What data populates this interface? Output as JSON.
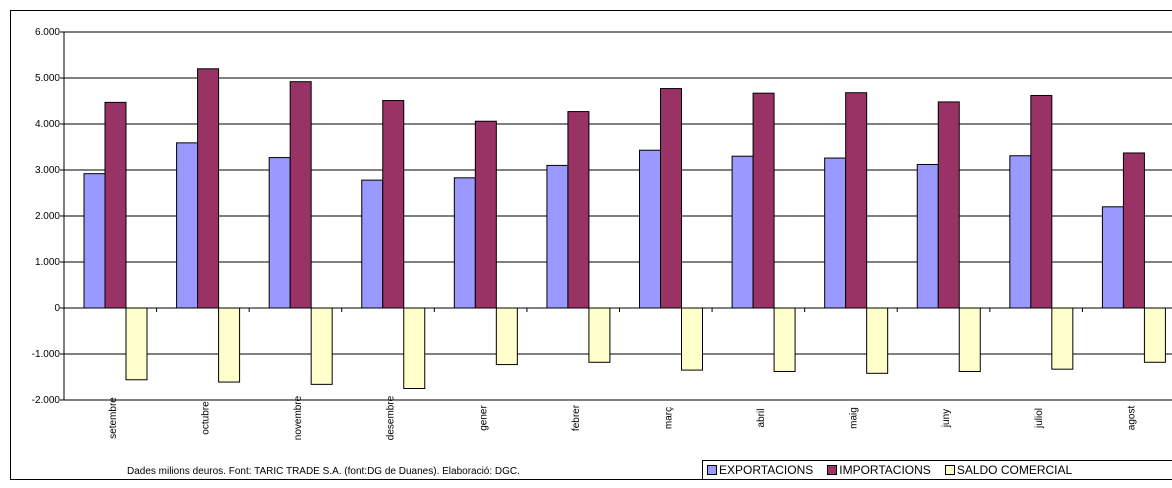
{
  "chart_data": {
    "type": "bar",
    "categories": [
      "setembre",
      "octubre",
      "novembre",
      "desembre",
      "gener",
      "febrer",
      "març",
      "abril",
      "maig",
      "juny",
      "juliol",
      "agost"
    ],
    "series": [
      {
        "name": "EXPORTACIONS",
        "color": "#9999ff",
        "values": [
          2920,
          3590,
          3270,
          2780,
          2830,
          3100,
          3430,
          3300,
          3260,
          3120,
          3310,
          2200
        ]
      },
      {
        "name": "IMPORTACIONS",
        "color": "#993366",
        "values": [
          4470,
          5200,
          4920,
          4510,
          4060,
          4270,
          4770,
          4670,
          4680,
          4480,
          4620,
          3370
        ]
      },
      {
        "name": "SALDO COMERCIAL",
        "color": "#ffffcc",
        "values": [
          -1560,
          -1610,
          -1660,
          -1750,
          -1230,
          -1180,
          -1350,
          -1380,
          -1420,
          -1380,
          -1330,
          -1180
        ]
      }
    ],
    "ylim": [
      -2000,
      6000
    ],
    "ytick_values": [
      6000,
      5000,
      4000,
      3000,
      2000,
      1000,
      0,
      -1000,
      -2000
    ],
    "ytick_labels": [
      "6.000",
      "5.000",
      "4.000",
      "3.000",
      "2.000",
      "1.000",
      "0",
      "-1.000",
      "-2.000"
    ],
    "grid": true,
    "legend_position": "bottom-right",
    "source_note": "Dades milions deuros. Font: TARIC TRADE S.A. (font:DG de Duanes). Elaboració: DGC."
  }
}
